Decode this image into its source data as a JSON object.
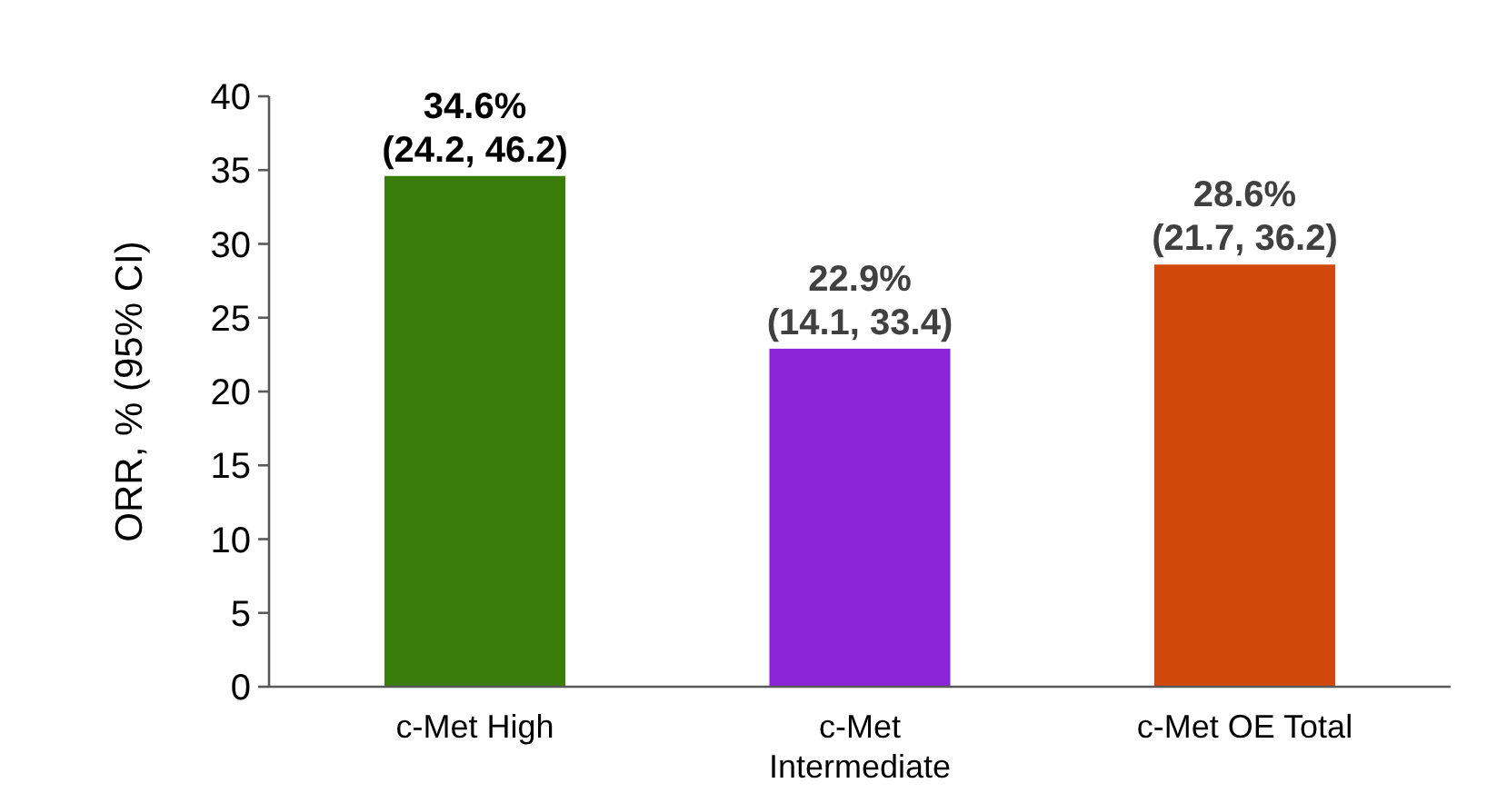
{
  "chart_data": {
    "type": "bar",
    "ylabel": "ORR, % (95% CI)",
    "categories": [
      "c-Met High",
      "c-Met Intermediate",
      "c-Met OE Total"
    ],
    "values": [
      34.6,
      22.9,
      28.6
    ],
    "colors": [
      "#3a7d0a",
      "#8b24d6",
      "#d0480c"
    ],
    "value_labels": [
      "34.6%\n(24.2, 46.2)",
      "22.9%\n(14.1, 33.4)",
      "28.6%\n(21.7, 36.2)"
    ],
    "ylim": [
      0,
      40
    ],
    "yticks": [
      0,
      5,
      10,
      15,
      20,
      25,
      30,
      35,
      40
    ],
    "grid": false
  }
}
